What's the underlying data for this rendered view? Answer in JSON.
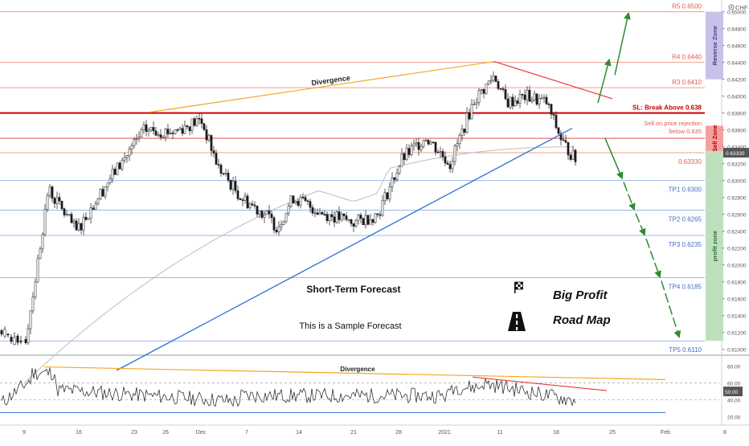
{
  "currency": "CHF",
  "price_axis": {
    "ticks": [
      "0.65000",
      "0.64800",
      "0.64600",
      "0.64400",
      "0.64200",
      "0.64000",
      "0.63800",
      "0.63600",
      "0.63400",
      "0.63200",
      "0.63000",
      "0.62800",
      "0.62600",
      "0.62400",
      "0.62200",
      "0.62000",
      "0.61800",
      "0.61600",
      "0.61400",
      "0.61200",
      "0.61000"
    ],
    "current_price": "0.63330",
    "range": [
      0.6095,
      0.6512
    ]
  },
  "osc_axis": {
    "ticks": [
      "80.00",
      "60.00",
      "40.00",
      "20.00"
    ],
    "current_value": "50.00",
    "range": [
      14,
      90
    ]
  },
  "time_axis": {
    "labels": [
      "9",
      "16",
      "23",
      "26",
      "Dec",
      "7",
      "14",
      "21",
      "28",
      "2021",
      "11",
      "18",
      "25",
      "Feb",
      "8"
    ]
  },
  "levels": [
    {
      "label": "R5 0.6500",
      "price": 0.65,
      "color": "#f0a08a",
      "label_color": "#e05a4f"
    },
    {
      "label": "R4 0.6440",
      "price": 0.644,
      "color": "#f0a08a",
      "label_color": "#e05a4f"
    },
    {
      "label": "R3 0.6410",
      "price": 0.641,
      "color": "#f0a08a",
      "label_color": "#e05a4f"
    },
    {
      "label": "SL: Break Above 0.638",
      "price": 0.638,
      "color": "#cc0000",
      "label_color": "#cc0000",
      "bold": true
    },
    {
      "label": "0.63330",
      "price": 0.6333,
      "color": "#f0a08a",
      "label_color": "#e05a4f"
    },
    {
      "label": "TP1 0.6300",
      "price": 0.63,
      "color": "#9bb7e6",
      "label_color": "#3f6fc7"
    },
    {
      "label": "TP2 0.6265",
      "price": 0.6265,
      "color": "#9bb7e6",
      "label_color": "#3f6fc7"
    },
    {
      "label": "TP3 0.6235",
      "price": 0.6235,
      "color": "#9bb7e6",
      "label_color": "#3f6fc7"
    },
    {
      "label": "TP4 0.6185",
      "price": 0.6185,
      "color": "#9bb7e6",
      "label_color": "#3f6fc7"
    },
    {
      "label": "TP5 0.6110",
      "price": 0.611,
      "color": "#9bb7e6",
      "label_color": "#3f6fc7"
    }
  ],
  "sell_level": {
    "price": 0.635,
    "label_line1": "Sell on price rejection",
    "label_line2": "below 0.635",
    "color": "#e05a4f"
  },
  "zones": [
    {
      "label": "Reverse Zone",
      "from": 0.642,
      "to": 0.65,
      "fill": "#c9c2e8",
      "text_color": "#4b3c8f"
    },
    {
      "label": "Sell Zone",
      "from": 0.6335,
      "to": 0.6365,
      "fill": "#f4a0a0",
      "text_color": "#b30000"
    },
    {
      "label": "profit zone",
      "from": 0.611,
      "to": 0.6335,
      "fill": "#bfe0bf",
      "text_color": "#2e6b2e"
    }
  ],
  "annotations": {
    "divergence_price": "Divergence",
    "divergence_osc": "Divergence",
    "forecast_title": "Short-Term Forecast",
    "forecast_sub": "This is a Sample Forecast",
    "brand_line1": "Big Profit",
    "brand_line2": "Road Map"
  },
  "icons": {
    "flag": "checkered-flag-icon",
    "road": "road-icon",
    "settings": "gear-icon"
  },
  "colors": {
    "bull": "#1a1a1a",
    "bear": "#1a1a1a",
    "divergence": "#f5a623",
    "trend_down": "#e53935",
    "trend_up": "#2f6fd6",
    "forecast_arrow": "#2e8b2e",
    "ma": "#bdbdbd",
    "osc_line": "#333333"
  },
  "chart_data": {
    "type": "candlestick",
    "instrument_quote_currency": "CHF",
    "close_path": [
      {
        "t": "9",
        "price": 0.611
      },
      {
        "t": "11",
        "price": 0.6205
      },
      {
        "t": "13",
        "price": 0.63
      },
      {
        "t": "16",
        "price": 0.625
      },
      {
        "t": "19",
        "price": 0.6305
      },
      {
        "t": "23",
        "price": 0.636
      },
      {
        "t": "26",
        "price": 0.6355
      },
      {
        "t": "Dec",
        "price": 0.637
      },
      {
        "t": "2",
        "price": 0.632
      },
      {
        "t": "7",
        "price": 0.6275
      },
      {
        "t": "14",
        "price": 0.626
      },
      {
        "t": "21",
        "price": 0.624
      },
      {
        "t": "28",
        "price": 0.632
      },
      {
        "t": "31",
        "price": 0.636
      },
      {
        "t": "2021",
        "price": 0.633
      },
      {
        "t": "8",
        "price": 0.642
      },
      {
        "t": "11",
        "price": 0.6395
      },
      {
        "t": "14",
        "price": 0.6395
      },
      {
        "t": "18",
        "price": 0.6355
      },
      {
        "t": "20",
        "price": 0.6325
      }
    ],
    "moving_average": {
      "start": {
        "t": "23",
        "price": 0.62
      },
      "end": {
        "t": "20",
        "price": 0.634
      }
    },
    "trendlines": [
      {
        "name": "Divergence",
        "from": {
          "t": "23",
          "price": 0.6381
        },
        "to": {
          "t": "8",
          "price": 0.6441
        }
      },
      {
        "name": "Resistance",
        "from": {
          "t": "8",
          "price": 0.6441
        },
        "to": {
          "t": "25",
          "price": 0.6397
        }
      },
      {
        "name": "Support",
        "from": {
          "t": "Dec",
          "price": 0.6075
        },
        "to": {
          "t": "18",
          "price": 0.6362
        }
      }
    ],
    "forecast_up": [
      0.639,
      0.644,
      0.65
    ],
    "forecast_down": [
      0.6335,
      0.63,
      0.6265,
      0.6235,
      0.6185,
      0.611
    ],
    "oscillator": {
      "levels": [
        80,
        60,
        40,
        20
      ],
      "current": 50,
      "divergence_line": {
        "from": {
          "t": "11",
          "value": 79
        },
        "to": {
          "t": "Feb",
          "value": 64
        }
      },
      "resistance_line": {
        "from": {
          "t": "8",
          "value": 67
        },
        "to": {
          "t": "25",
          "value": 51
        }
      },
      "support_line": {
        "from": {
          "t": "9",
          "value": 25
        },
        "to": {
          "t": "Feb",
          "value": 25
        }
      }
    }
  }
}
